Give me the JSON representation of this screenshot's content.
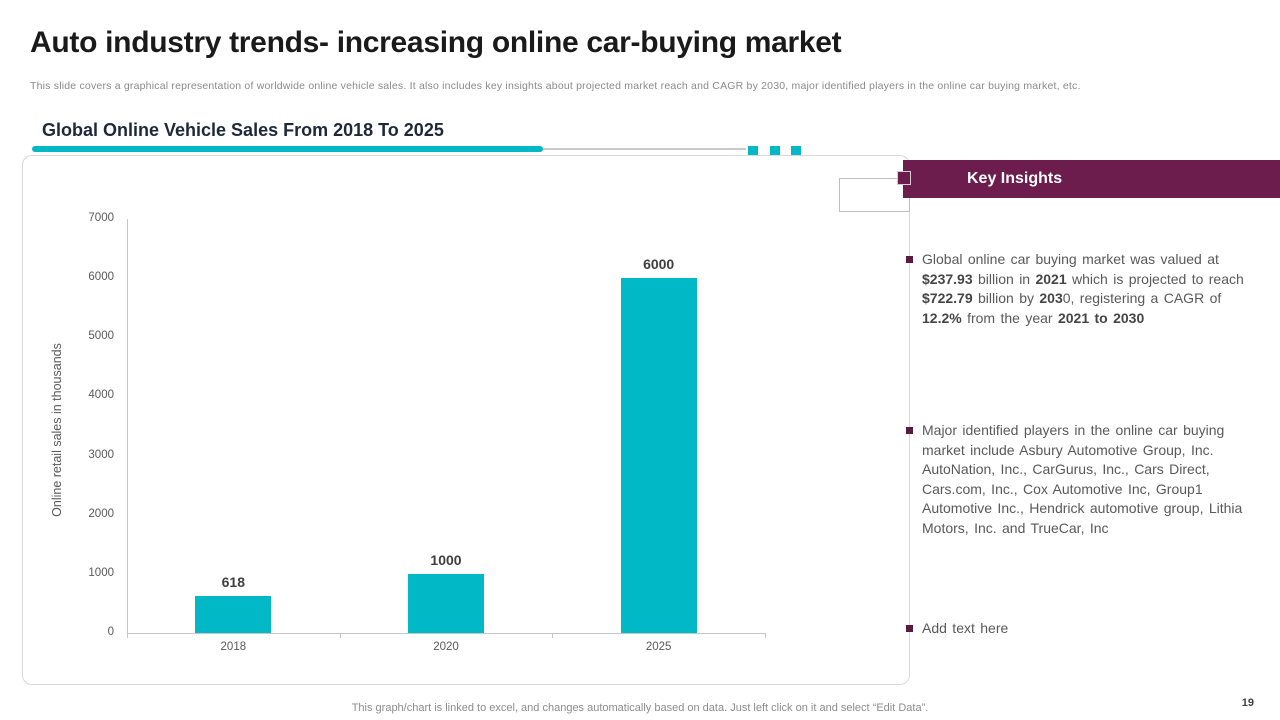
{
  "slide": {
    "title": "Auto industry trends- increasing online car-buying market",
    "subtitle": "This slide covers a graphical representation of worldwide online vehicle sales. It also includes key insights about projected market reach and CAGR by 2030, major identified players in the online car buying market, etc.",
    "footer": "This graph/chart is linked to excel, and changes automatically based on data. Just left click on it and select “Edit Data”.",
    "page_number": "19"
  },
  "chart_section": {
    "title": "Global Online Vehicle Sales From 2018 To 2025"
  },
  "chart_data": {
    "type": "bar",
    "title": "Global Online Vehicle Sales From 2018 To 2025",
    "categories": [
      "2018",
      "2020",
      "2025"
    ],
    "values": [
      618,
      1000,
      6000
    ],
    "xlabel": "",
    "ylabel": "Online retail sales in thousands",
    "ylim": [
      0,
      7000
    ],
    "yticks": [
      0,
      1000,
      2000,
      3000,
      4000,
      5000,
      6000,
      7000
    ],
    "bar_color": "#00b8c6",
    "grid": false,
    "legend": "none",
    "data_labels_shown": true
  },
  "insights": {
    "header": "Key Insights",
    "bullets": [
      {
        "segments": [
          {
            "t": "Global online car buying market was valued at "
          },
          {
            "t": "$237.93",
            "b": true
          },
          {
            "t": " billion in "
          },
          {
            "t": "2021",
            "b": true
          },
          {
            "t": " which is projected to reach "
          },
          {
            "t": "$722.79",
            "b": true
          },
          {
            "t": " billion by "
          },
          {
            "t": "203",
            "b": true
          },
          {
            "t": "0, registering a CAGR of "
          },
          {
            "t": "12.2%",
            "b": true
          },
          {
            "t": " from the year "
          },
          {
            "t": "2021 to 2030",
            "b": true
          }
        ]
      },
      {
        "segments": [
          {
            "t": "Major identified players in the online car buying market include Asbury Automotive Group, Inc. AutoNation, Inc., CarGurus, Inc., Cars Direct, Cars.com, Inc., Cox Automotive Inc, Group1 Automotive Inc., Hendrick automotive group, Lithia Motors, Inc. and TrueCar, Inc"
          }
        ]
      },
      {
        "segments": [
          {
            "t": "Add text here"
          }
        ]
      }
    ]
  },
  "colors": {
    "accent_teal": "#00b8c6",
    "accent_maroon": "#6d1c4e",
    "bullet_square": "#5a1a40",
    "axis_text": "#595959"
  }
}
